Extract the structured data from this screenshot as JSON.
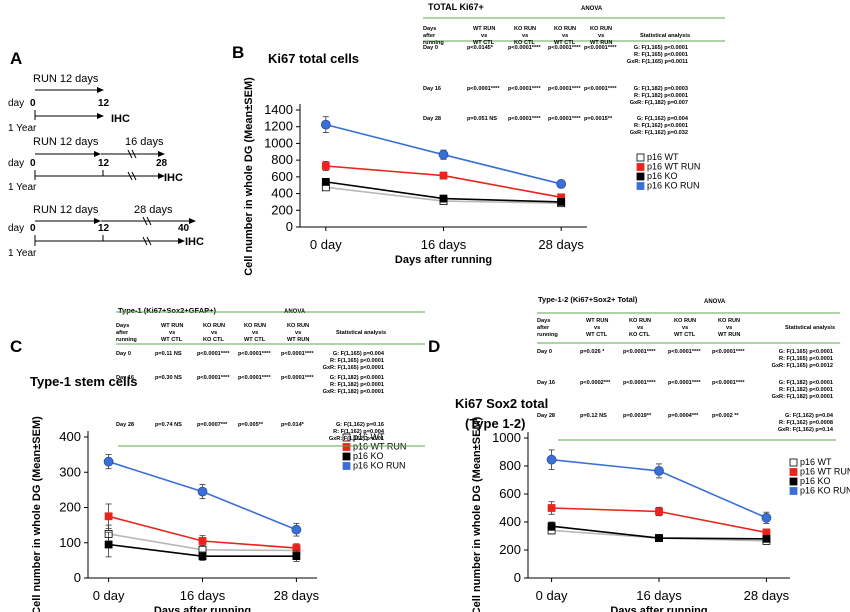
{
  "panels": {
    "A": {
      "label": "A",
      "timelines": [
        {
          "run": "RUN 12 days",
          "after": "",
          "day": "day",
          "start": "0",
          "end": "12",
          "end2": "",
          "ihc": "IHC",
          "year": "1 Year"
        },
        {
          "run": "RUN 12 days",
          "after": "16 days",
          "day": "day",
          "start": "0",
          "end": "12",
          "end2": "28",
          "ihc": "IHC",
          "year": "1 Year"
        },
        {
          "run": "RUN 12 days",
          "after": "28 days",
          "day": "day",
          "start": "0",
          "end": "12",
          "end2": "40",
          "ihc": "IHC",
          "year": "1 Year"
        }
      ]
    },
    "B": {
      "label": "B"
    },
    "C": {
      "label": "C"
    },
    "D": {
      "label": "D"
    }
  },
  "chart_data": [
    {
      "id": "B",
      "type": "line",
      "title": "Ki67 total cells",
      "categories": [
        "0 day",
        "16 days",
        "28 days"
      ],
      "xlabel": "Days after running",
      "ylabel": "Cell number in whole DG (Mean±SEM)",
      "ylim": [
        0,
        1400
      ],
      "yticks": [
        "0",
        "200",
        "400",
        "600",
        "800",
        "1000",
        "1200",
        "1400"
      ],
      "series": [
        {
          "name": "p16 WT",
          "color": "#ffffff",
          "line": "#b8b8b8",
          "values": [
            475,
            310,
            285
          ],
          "err": [
            30,
            20,
            20
          ]
        },
        {
          "name": "p16 WT RUN",
          "color": "#e8241c",
          "line": "#e8241c",
          "values": [
            730,
            615,
            355
          ],
          "err": [
            55,
            40,
            30
          ]
        },
        {
          "name": "p16 KO",
          "color": "#000000",
          "line": "#000000",
          "values": [
            540,
            340,
            300
          ],
          "err": [
            40,
            25,
            25
          ]
        },
        {
          "name": "p16 KO RUN",
          "color": "#3a6fd8",
          "line": "#3a6fd8",
          "values": [
            1225,
            865,
            515
          ],
          "err": [
            95,
            55,
            45
          ]
        }
      ],
      "table": {
        "title": "TOTAL Ki67+",
        "anova": "ANOVA",
        "headers": [
          "Days after running",
          "WT RUN vs WT CTL",
          "KO RUN vs KO CTL",
          "KO RUN vs WT CTL",
          "KO RUN vs WT RUN",
          "Statistical analysis"
        ],
        "rows": [
          {
            "day": "Day 0",
            "c1": "p<0.0145*",
            "c2": "p<0.0001****",
            "c3": "p<0.0001****",
            "c4": "p<0.0001****",
            "g": "G: F(1,165) p<0.0001",
            "r": "R: F(1,165) p<0.0001",
            "gr": "GxR: F(1,165) p=0.0011"
          },
          {
            "day": "Day 16",
            "c1": "p<0.0001****",
            "c2": "p<0.0001****",
            "c3": "p<0.0001****",
            "c4": "p<0.0001****",
            "g": "G: F(1,182) p=0.0003",
            "r": "R: F(1,182) p<0.0001",
            "gr": "GxR: F(1,182) p=0.007"
          },
          {
            "day": "Day 28",
            "c1": "p=0.051 NS",
            "c2": "p<0.0001****",
            "c3": "p<0.0001****",
            "c4": "p=0.0015**",
            "g": "G: F(1,162) p=0.004",
            "r": "R: F(1,162) p<0.0001",
            "gr": "GxR: F(1,162) p=0.032"
          }
        ]
      }
    },
    {
      "id": "C",
      "type": "line",
      "title": "Type-1 stem cells",
      "categories": [
        "0 day",
        "16 days",
        "28 days"
      ],
      "xlabel": "Days after running",
      "ylabel": "Cell number in whole DG (Mean±SEM)",
      "ylim": [
        0,
        400
      ],
      "yticks": [
        "0",
        "100",
        "200",
        "300",
        "400"
      ],
      "series": [
        {
          "name": "p16 WT",
          "color": "#ffffff",
          "line": "#b8b8b8",
          "values": [
            125,
            80,
            78
          ],
          "err": [
            25,
            12,
            10
          ]
        },
        {
          "name": "p16 WT RUN",
          "color": "#e8241c",
          "line": "#e8241c",
          "values": [
            175,
            105,
            85
          ],
          "err": [
            35,
            15,
            12
          ]
        },
        {
          "name": "p16 KO",
          "color": "#000000",
          "line": "#000000",
          "values": [
            95,
            62,
            62
          ],
          "err": [
            35,
            12,
            15
          ]
        },
        {
          "name": "p16 KO RUN",
          "color": "#3a6fd8",
          "line": "#3a6fd8",
          "values": [
            330,
            245,
            137
          ],
          "err": [
            20,
            20,
            18
          ]
        }
      ],
      "table": {
        "title": "Type-1 (Ki67+Sox2+GFAP+)",
        "anova": "ANOVA",
        "headers": [
          "Days after running",
          "WT RUN vs WT CTL",
          "KO RUN vs KO CTL",
          "KO RUN vs WT CTL",
          "KO RUN vs WT RUN",
          "Statistical analysis"
        ],
        "rows": [
          {
            "day": "Day 0",
            "c1": "p=0.11 NS",
            "c2": "p<0.0001****",
            "c3": "p<0.0001****",
            "c4": "p<0.0001****",
            "g": "G: F(1,165) p=0.004",
            "r": "R: F(1,165) p<0.0001",
            "gr": "GxR: F(1,165) p<0.0001"
          },
          {
            "day": "Day 16",
            "c1": "p=0.30 NS",
            "c2": "p<0.0001****",
            "c3": "p<0.0001****",
            "c4": "p<0.0001****",
            "g": "G: F(1,182) p<0.0001",
            "r": "R: F(1,182) p<0.0001",
            "gr": "GxR: F(1,182) p<0.0001"
          },
          {
            "day": "Day 28",
            "c1": "p=0.74 NS",
            "c2": "p=0.0007***",
            "c3": "p=0.005**",
            "c4": "p=0.014*",
            "g": "G: F(1,162) p=0.16",
            "r": "R: F(1,162) p=0.004",
            "gr": "GxR: F(1,162) p=0.01"
          }
        ]
      }
    },
    {
      "id": "D",
      "type": "line",
      "title": "Ki67 Sox2 total",
      "title2": "(Type 1-2)",
      "categories": [
        "0 day",
        "16 days",
        "28 days"
      ],
      "xlabel": "Days after running",
      "ylabel": "Cell number in whole DG (Mean±SEM)",
      "ylim": [
        0,
        1000
      ],
      "yticks": [
        "0",
        "200",
        "400",
        "600",
        "800",
        "1000"
      ],
      "series": [
        {
          "name": "p16 WT",
          "color": "#ffffff",
          "line": "#b8b8b8",
          "values": [
            340,
            285,
            265
          ],
          "err": [
            25,
            15,
            15
          ]
        },
        {
          "name": "p16 WT RUN",
          "color": "#e8241c",
          "line": "#e8241c",
          "values": [
            500,
            475,
            325
          ],
          "err": [
            45,
            30,
            25
          ]
        },
        {
          "name": "p16 KO",
          "color": "#000000",
          "line": "#000000",
          "values": [
            370,
            285,
            280
          ],
          "err": [
            30,
            15,
            15
          ]
        },
        {
          "name": "p16 KO RUN",
          "color": "#3a6fd8",
          "line": "#3a6fd8",
          "values": [
            845,
            765,
            430
          ],
          "err": [
            70,
            50,
            40
          ]
        }
      ],
      "table": {
        "title": "Type-1-2 (Ki67+Sox2+ Total)",
        "anova": "ANOVA",
        "headers": [
          "Days after running",
          "WT RUN vs WT CTL",
          "KO RUN vs KO CTL",
          "KO RUN vs WT CTL",
          "KO RUN vs WT RUN",
          "Statistical analysis"
        ],
        "rows": [
          {
            "day": "Day 0",
            "c1": "p=0.026 *",
            "c2": "p<0.0001****",
            "c3": "p<0.0001****",
            "c4": "p<0.0001****",
            "g": "G: F(1,165) p<0.0001",
            "r": "R: F(1,165) p<0.0001",
            "gr": "GxR: F(1,165) p=0.0012"
          },
          {
            "day": "Day 16",
            "c1": "p<0.0002***",
            "c2": "p<0.0001****",
            "c3": "p<0.0001****",
            "c4": "p<0.0001****",
            "g": "G: F(1,182) p<0.0001",
            "r": "R: F(1,182) p<0.0001",
            "gr": "GxR: F(1,182) p<0.0001"
          },
          {
            "day": "Day 28",
            "c1": "p=0.12 NS",
            "c2": "p=0.0019**",
            "c3": "p=0.0004***",
            "c4": "p=0.002 **",
            "g": "G: F(1,162) p=0.04",
            "r": "R: F(1,162) p=0.0008",
            "gr": "GxR: F(1,162) p=0.14"
          }
        ]
      }
    }
  ]
}
